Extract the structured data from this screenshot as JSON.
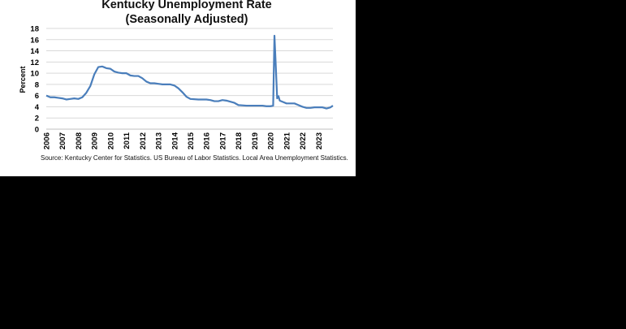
{
  "chart_data": {
    "type": "line",
    "title": "Kentucky Unemployment Rate",
    "subtitle": "(Seasonally Adjusted)",
    "ylabel": "Percent",
    "xlabel": "",
    "ylim": [
      0,
      18
    ],
    "yticks": [
      0,
      2,
      4,
      6,
      8,
      10,
      12,
      14,
      16,
      18
    ],
    "xlim": [
      2006.0,
      2023.9
    ],
    "xticks": [
      "2006",
      "2007",
      "2008",
      "2009",
      "2010",
      "2011",
      "2012",
      "2013",
      "2014",
      "2015",
      "2016",
      "2017",
      "2018",
      "2019",
      "2020",
      "2021",
      "2022",
      "2023"
    ],
    "grid": true,
    "legend": "none",
    "line_color": "#4a7ebb",
    "series": [
      {
        "x": [
          2006.0,
          2006.25,
          2006.5,
          2006.75,
          2007.0,
          2007.25,
          2007.5,
          2007.75,
          2008.0,
          2008.25,
          2008.5,
          2008.75,
          2009.0,
          2009.25,
          2009.5,
          2009.75,
          2010.0,
          2010.25,
          2010.5,
          2010.75,
          2011.0,
          2011.25,
          2011.5,
          2011.75,
          2012.0,
          2012.25,
          2012.5,
          2012.75,
          2013.0,
          2013.25,
          2013.5,
          2013.75,
          2014.0,
          2014.25,
          2014.5,
          2014.75,
          2015.0,
          2015.5,
          2016.0,
          2016.25,
          2016.5,
          2016.75,
          2017.0,
          2017.25,
          2017.5,
          2017.75,
          2018.0,
          2018.5,
          2019.0,
          2019.5,
          2019.75,
          2020.0,
          2020.17,
          2020.25,
          2020.33,
          2020.42,
          2020.5,
          2020.58,
          2020.75,
          2021.0,
          2021.25,
          2021.5,
          2021.75,
          2022.0,
          2022.25,
          2022.5,
          2022.75,
          2023.0,
          2023.25,
          2023.5,
          2023.75,
          2023.9
        ],
        "values": [
          6.0,
          5.7,
          5.7,
          5.6,
          5.5,
          5.3,
          5.4,
          5.5,
          5.4,
          5.7,
          6.5,
          7.7,
          9.8,
          11.1,
          11.2,
          10.9,
          10.8,
          10.3,
          10.1,
          10.0,
          10.0,
          9.6,
          9.5,
          9.5,
          9.1,
          8.5,
          8.2,
          8.2,
          8.1,
          8.0,
          8.0,
          8.0,
          7.8,
          7.3,
          6.6,
          5.8,
          5.4,
          5.3,
          5.3,
          5.2,
          5.0,
          5.0,
          5.2,
          5.1,
          4.9,
          4.7,
          4.3,
          4.2,
          4.2,
          4.2,
          4.1,
          4.1,
          4.2,
          16.7,
          11.5,
          5.5,
          5.9,
          5.1,
          4.9,
          4.6,
          4.6,
          4.6,
          4.3,
          4.0,
          3.8,
          3.8,
          3.9,
          3.9,
          3.9,
          3.7,
          3.9,
          4.2
        ]
      }
    ]
  },
  "source_text": "Source: Kentucky Center for Statistics. US Bureau of Labor Statistics. Local Area Unemployment Statistics."
}
